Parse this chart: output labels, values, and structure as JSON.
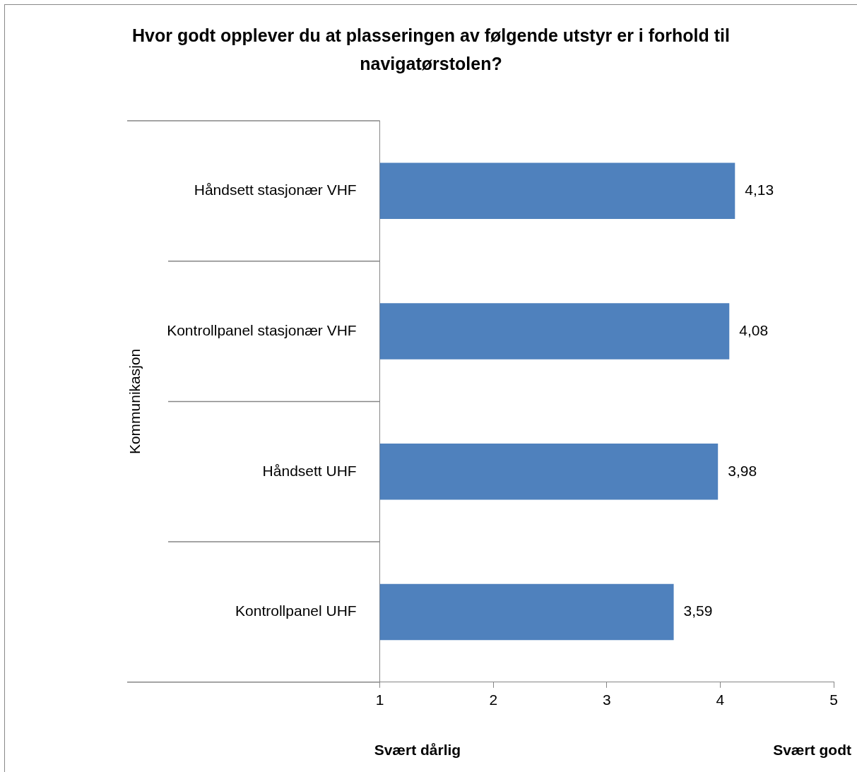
{
  "chart_data": {
    "type": "bar",
    "orientation": "horizontal",
    "title": "Hvor godt opplever du at plasseringen av følgende utstyr er i forhold til navigatørstolen?",
    "ylabel": "Kommunikasjon",
    "categories": [
      "Håndsett stasjonær VHF",
      "Kontrollpanel stasjonær VHF",
      "Håndsett UHF",
      "Kontrollpanel UHF"
    ],
    "values": [
      4.13,
      4.08,
      3.98,
      3.59
    ],
    "value_labels": [
      "4,13",
      "4,08",
      "3,98",
      "3,59"
    ],
    "color": "#4f81bd",
    "xlim": [
      1,
      5
    ],
    "xticks": [
      1,
      2,
      3,
      4,
      5
    ],
    "annotations": [
      "Svært dårlig",
      "Svært godt"
    ],
    "grid": false,
    "legend": false
  }
}
